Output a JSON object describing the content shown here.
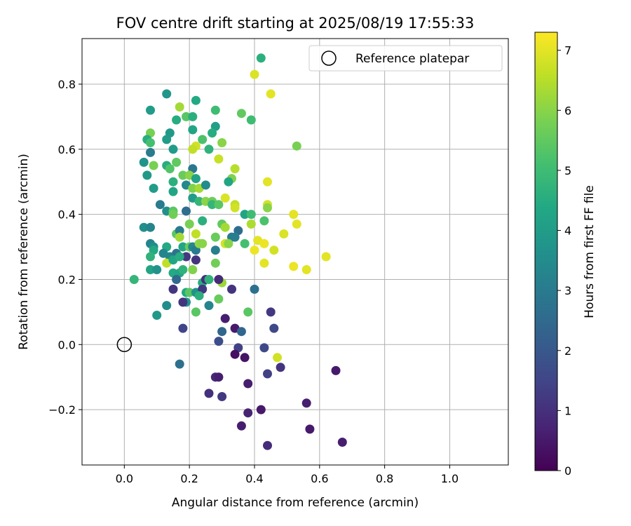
{
  "chart_data": {
    "type": "scatter",
    "title": "FOV centre drift starting at 2025/08/19 17:55:33",
    "xlabel": "Angular distance from reference (arcmin)",
    "ylabel": "Rotation from reference (arcmin)",
    "xlim": [
      -0.13,
      1.18
    ],
    "ylim": [
      -0.37,
      0.94
    ],
    "xticks": [
      0.0,
      0.2,
      0.4,
      0.6,
      0.8,
      1.0
    ],
    "xtick_labels": [
      "0.0",
      "0.2",
      "0.4",
      "0.6",
      "0.8",
      "1.0"
    ],
    "yticks": [
      -0.2,
      0.0,
      0.2,
      0.4,
      0.6,
      0.8
    ],
    "ytick_labels": [
      "−0.2",
      "0.0",
      "0.2",
      "0.4",
      "0.6",
      "0.8"
    ],
    "grid": true,
    "colormap": "viridis",
    "colorbar": {
      "label": "Hours from first FF file",
      "range": [
        0,
        7.3
      ],
      "ticks": [
        0,
        1,
        2,
        3,
        4,
        5,
        6,
        7
      ],
      "tick_labels": [
        "0",
        "1",
        "2",
        "3",
        "4",
        "5",
        "6",
        "7"
      ]
    },
    "legend": {
      "placement": "top-right",
      "entries": [
        {
          "label": "Reference platepar",
          "marker": "open-circle"
        }
      ]
    },
    "reference_point": {
      "x": 0.0,
      "y": 0.0
    },
    "point_columns": [
      "x",
      "y",
      "hours"
    ],
    "points": [
      [
        0.42,
        0.88,
        4.6
      ],
      [
        0.4,
        0.83,
        6.9
      ],
      [
        0.45,
        0.77,
        7.0
      ],
      [
        0.13,
        0.77,
        3.8
      ],
      [
        0.22,
        0.75,
        4.4
      ],
      [
        0.08,
        0.72,
        4.0
      ],
      [
        0.17,
        0.73,
        6.3
      ],
      [
        0.19,
        0.7,
        5.4
      ],
      [
        0.21,
        0.7,
        4.6
      ],
      [
        0.28,
        0.72,
        5.0
      ],
      [
        0.36,
        0.71,
        5.5
      ],
      [
        0.39,
        0.69,
        5.0
      ],
      [
        0.16,
        0.69,
        4.5
      ],
      [
        0.08,
        0.65,
        5.8
      ],
      [
        0.14,
        0.65,
        3.9
      ],
      [
        0.21,
        0.66,
        4.3
      ],
      [
        0.28,
        0.67,
        4.1
      ],
      [
        0.07,
        0.63,
        4.5
      ],
      [
        0.08,
        0.62,
        5.1
      ],
      [
        0.13,
        0.63,
        4.0
      ],
      [
        0.24,
        0.63,
        5.2
      ],
      [
        0.27,
        0.65,
        4.5
      ],
      [
        0.3,
        0.62,
        6.0
      ],
      [
        0.22,
        0.61,
        6.8
      ],
      [
        0.21,
        0.6,
        6.6
      ],
      [
        0.15,
        0.6,
        4.0
      ],
      [
        0.08,
        0.59,
        3.0
      ],
      [
        0.26,
        0.6,
        4.7
      ],
      [
        0.53,
        0.61,
        5.8
      ],
      [
        0.06,
        0.56,
        3.7
      ],
      [
        0.09,
        0.55,
        5.8
      ],
      [
        0.13,
        0.55,
        4.5
      ],
      [
        0.14,
        0.54,
        5.3
      ],
      [
        0.16,
        0.56,
        5.5
      ],
      [
        0.21,
        0.54,
        2.9
      ],
      [
        0.29,
        0.57,
        6.7
      ],
      [
        0.34,
        0.54,
        6.5
      ],
      [
        0.07,
        0.52,
        3.9
      ],
      [
        0.18,
        0.52,
        5.6
      ],
      [
        0.2,
        0.52,
        6.0
      ],
      [
        0.22,
        0.51,
        4.2
      ],
      [
        0.15,
        0.5,
        4.6
      ],
      [
        0.33,
        0.51,
        5.9
      ],
      [
        0.32,
        0.5,
        4.3
      ],
      [
        0.44,
        0.5,
        7.0
      ],
      [
        0.09,
        0.48,
        4.0
      ],
      [
        0.19,
        0.49,
        3.4
      ],
      [
        0.21,
        0.48,
        5.9
      ],
      [
        0.23,
        0.48,
        6.3
      ],
      [
        0.25,
        0.49,
        3.5
      ],
      [
        0.15,
        0.47,
        4.3
      ],
      [
        0.31,
        0.45,
        6.9
      ],
      [
        0.21,
        0.45,
        4.0
      ],
      [
        0.23,
        0.44,
        4.8
      ],
      [
        0.25,
        0.44,
        6.0
      ],
      [
        0.27,
        0.44,
        5.7
      ],
      [
        0.27,
        0.43,
        4.8
      ],
      [
        0.29,
        0.43,
        5.4
      ],
      [
        0.34,
        0.43,
        6.6
      ],
      [
        0.34,
        0.42,
        6.8
      ],
      [
        0.44,
        0.43,
        6.8
      ],
      [
        0.44,
        0.42,
        6.0
      ],
      [
        0.11,
        0.43,
        3.0
      ],
      [
        0.13,
        0.41,
        3.6
      ],
      [
        0.15,
        0.41,
        5.4
      ],
      [
        0.15,
        0.4,
        5.7
      ],
      [
        0.19,
        0.41,
        2.6
      ],
      [
        0.37,
        0.4,
        4.3
      ],
      [
        0.39,
        0.4,
        5.0
      ],
      [
        0.52,
        0.4,
        7.0
      ],
      [
        0.43,
        0.38,
        5.2
      ],
      [
        0.53,
        0.37,
        7.0
      ],
      [
        0.06,
        0.36,
        3.6
      ],
      [
        0.08,
        0.36,
        3.3
      ],
      [
        0.16,
        0.34,
        5.4
      ],
      [
        0.17,
        0.35,
        3.0
      ],
      [
        0.2,
        0.37,
        5.8
      ],
      [
        0.24,
        0.38,
        4.6
      ],
      [
        0.3,
        0.37,
        5.5
      ],
      [
        0.31,
        0.36,
        6.3
      ],
      [
        0.35,
        0.35,
        2.6
      ],
      [
        0.33,
        0.33,
        3.0
      ],
      [
        0.39,
        0.37,
        6.4
      ],
      [
        0.49,
        0.34,
        6.9
      ],
      [
        0.17,
        0.33,
        6.3
      ],
      [
        0.22,
        0.34,
        6.6
      ],
      [
        0.28,
        0.33,
        5.6
      ],
      [
        0.31,
        0.31,
        6.8
      ],
      [
        0.32,
        0.31,
        6.0
      ],
      [
        0.34,
        0.33,
        3.1
      ],
      [
        0.37,
        0.31,
        5.1
      ],
      [
        0.41,
        0.32,
        7.0
      ],
      [
        0.43,
        0.31,
        7.1
      ],
      [
        0.08,
        0.31,
        3.3
      ],
      [
        0.09,
        0.3,
        3.6
      ],
      [
        0.09,
        0.29,
        4.4
      ],
      [
        0.13,
        0.3,
        4.4
      ],
      [
        0.18,
        0.3,
        4.3
      ],
      [
        0.2,
        0.3,
        5.6
      ],
      [
        0.21,
        0.3,
        3.4
      ],
      [
        0.22,
        0.29,
        3.0
      ],
      [
        0.23,
        0.31,
        6.1
      ],
      [
        0.24,
        0.31,
        6.0
      ],
      [
        0.28,
        0.29,
        3.1
      ],
      [
        0.4,
        0.29,
        7.1
      ],
      [
        0.46,
        0.29,
        6.8
      ],
      [
        0.12,
        0.28,
        3.3
      ],
      [
        0.14,
        0.27,
        3.3
      ],
      [
        0.16,
        0.28,
        2.8
      ],
      [
        0.19,
        0.27,
        1.2
      ],
      [
        0.08,
        0.27,
        4.7
      ],
      [
        0.13,
        0.25,
        6.6
      ],
      [
        0.15,
        0.26,
        4.3
      ],
      [
        0.17,
        0.27,
        4.5
      ],
      [
        0.22,
        0.26,
        1.1
      ],
      [
        0.28,
        0.25,
        5.7
      ],
      [
        0.43,
        0.25,
        7.0
      ],
      [
        0.52,
        0.24,
        7.1
      ],
      [
        0.56,
        0.23,
        7.0
      ],
      [
        0.62,
        0.27,
        7.0
      ],
      [
        0.08,
        0.23,
        4.3
      ],
      [
        0.1,
        0.23,
        3.7
      ],
      [
        0.15,
        0.22,
        4.4
      ],
      [
        0.17,
        0.22,
        4.3
      ],
      [
        0.18,
        0.23,
        4.7
      ],
      [
        0.21,
        0.23,
        5.9
      ],
      [
        0.03,
        0.2,
        4.8
      ],
      [
        0.16,
        0.2,
        2.5
      ],
      [
        0.24,
        0.19,
        4.5
      ],
      [
        0.25,
        0.2,
        1.0
      ],
      [
        0.26,
        0.2,
        4.7
      ],
      [
        0.3,
        0.19,
        6.2
      ],
      [
        0.29,
        0.2,
        0.9
      ],
      [
        0.15,
        0.17,
        1.1
      ],
      [
        0.19,
        0.16,
        4.4
      ],
      [
        0.2,
        0.16,
        5.4
      ],
      [
        0.22,
        0.16,
        3.7
      ],
      [
        0.24,
        0.17,
        1.2
      ],
      [
        0.33,
        0.17,
        1.1
      ],
      [
        0.4,
        0.17,
        2.7
      ],
      [
        0.19,
        0.13,
        3.7
      ],
      [
        0.23,
        0.15,
        4.6
      ],
      [
        0.18,
        0.13,
        1.1
      ],
      [
        0.13,
        0.12,
        3.5
      ],
      [
        0.26,
        0.12,
        3.3
      ],
      [
        0.29,
        0.14,
        5.6
      ],
      [
        0.22,
        0.1,
        5.4
      ],
      [
        0.38,
        0.1,
        5.4
      ],
      [
        0.1,
        0.09,
        3.9
      ],
      [
        0.45,
        0.1,
        1.2
      ],
      [
        0.31,
        0.08,
        0.6
      ],
      [
        0.18,
        0.05,
        1.5
      ],
      [
        0.34,
        0.05,
        0.5
      ],
      [
        0.36,
        0.04,
        2.4
      ],
      [
        0.46,
        0.05,
        1.6
      ],
      [
        0.3,
        0.04,
        2.4
      ],
      [
        0.29,
        0.01,
        1.7
      ],
      [
        0.35,
        -0.01,
        1.4
      ],
      [
        0.43,
        -0.01,
        1.6
      ],
      [
        0.47,
        -0.04,
        6.8
      ],
      [
        0.34,
        -0.03,
        0.3
      ],
      [
        0.37,
        -0.04,
        0.4
      ],
      [
        0.17,
        -0.06,
        2.7
      ],
      [
        0.48,
        -0.07,
        1.1
      ],
      [
        0.44,
        -0.09,
        1.4
      ],
      [
        0.65,
        -0.08,
        0.5
      ],
      [
        0.28,
        -0.1,
        0.8
      ],
      [
        0.29,
        -0.1,
        0.6
      ],
      [
        0.38,
        -0.12,
        0.6
      ],
      [
        0.26,
        -0.15,
        1.0
      ],
      [
        0.3,
        -0.16,
        1.2
      ],
      [
        0.56,
        -0.18,
        0.6
      ],
      [
        0.38,
        -0.21,
        0.7
      ],
      [
        0.42,
        -0.2,
        0.5
      ],
      [
        0.57,
        -0.26,
        0.5
      ],
      [
        0.36,
        -0.25,
        0.6
      ],
      [
        0.67,
        -0.3,
        0.6
      ],
      [
        0.44,
        -0.31,
        0.9
      ]
    ]
  }
}
